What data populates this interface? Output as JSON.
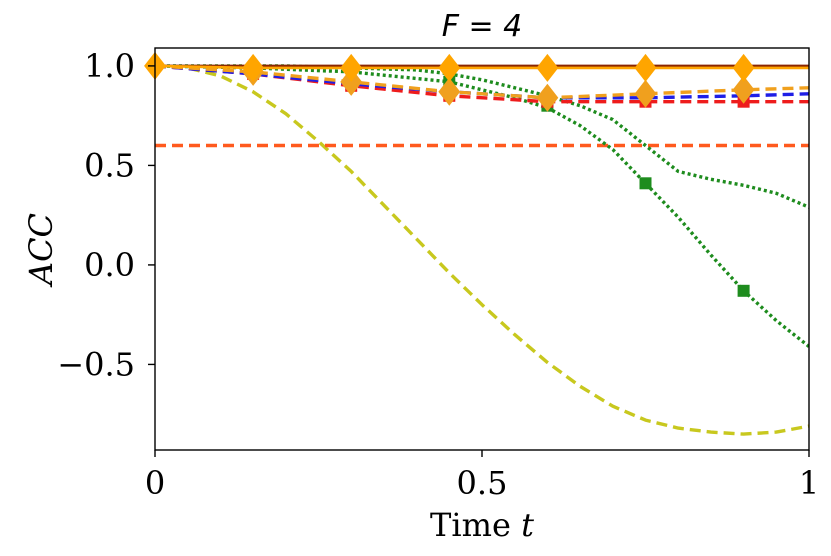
{
  "chart_data": {
    "type": "line",
    "title": "F = 4",
    "xlabel": "Time",
    "xlabel_var": "t",
    "ylabel": "ACC",
    "xlim": [
      0,
      1
    ],
    "ylim": [
      -0.93,
      1.09
    ],
    "xticks": [
      0,
      0.5,
      1
    ],
    "xtick_labels": [
      "0",
      "0.5",
      "1"
    ],
    "yticks": [
      -0.5,
      0.0,
      0.5,
      1.0
    ],
    "ytick_labels": [
      "−0.5",
      "0.0",
      "0.5",
      "1.0"
    ],
    "grid": false,
    "series": [
      {
        "name": "yellow-dashed",
        "color": "#c8c81e",
        "style": "dashed",
        "x": [
          0,
          0.05,
          0.1,
          0.15,
          0.2,
          0.25,
          0.3,
          0.35,
          0.4,
          0.45,
          0.5,
          0.55,
          0.6,
          0.65,
          0.7,
          0.75,
          0.8,
          0.85,
          0.9,
          0.95,
          1.0
        ],
        "y": [
          1.0,
          0.99,
          0.95,
          0.87,
          0.76,
          0.62,
          0.47,
          0.3,
          0.13,
          -0.04,
          -0.2,
          -0.35,
          -0.49,
          -0.61,
          -0.71,
          -0.78,
          -0.82,
          -0.84,
          -0.85,
          -0.84,
          -0.81
        ],
        "marker": "none"
      },
      {
        "name": "orange-red-dashed-constant",
        "color": "#ff5a1e",
        "style": "dashed",
        "x": [
          0,
          1.0
        ],
        "y": [
          0.6,
          0.6
        ],
        "marker": "none"
      },
      {
        "name": "green-dotted-1",
        "color": "#1e8c1e",
        "style": "dotted",
        "x": [
          0,
          0.1,
          0.2,
          0.3,
          0.4,
          0.45,
          0.5,
          0.55,
          0.6,
          0.65,
          0.7,
          0.75,
          0.8,
          0.85,
          0.9,
          0.95,
          1.0
        ],
        "y": [
          1.0,
          1.0,
          1.0,
          0.99,
          0.98,
          0.96,
          0.93,
          0.89,
          0.85,
          0.8,
          0.73,
          0.6,
          0.47,
          0.43,
          0.4,
          0.36,
          0.29
        ],
        "marker": "none"
      },
      {
        "name": "green-dotted-2",
        "color": "#1e8c1e",
        "style": "dotted",
        "x": [
          0,
          0.15,
          0.3,
          0.45,
          0.5,
          0.55,
          0.6,
          0.65,
          0.7,
          0.75,
          0.8,
          0.85,
          0.9,
          0.95,
          1.0
        ],
        "y": [
          1.0,
          0.99,
          0.97,
          0.92,
          0.88,
          0.84,
          0.79,
          0.7,
          0.58,
          0.41,
          0.24,
          0.05,
          -0.13,
          -0.28,
          -0.41
        ],
        "marker": "square",
        "marker_x": [
          0.45,
          0.6,
          0.75,
          0.9
        ],
        "marker_y": [
          0.92,
          0.8,
          0.41,
          -0.13
        ]
      },
      {
        "name": "red-dashed",
        "color": "#ee1c1c",
        "style": "dashed",
        "x": [
          0,
          0.15,
          0.3,
          0.45,
          0.6,
          0.75,
          0.9,
          1.0
        ],
        "y": [
          1.0,
          0.96,
          0.9,
          0.85,
          0.82,
          0.82,
          0.82,
          0.82
        ],
        "marker": "square",
        "marker_x": [
          0.15,
          0.3,
          0.45,
          0.6,
          0.75,
          0.9
        ],
        "marker_y": [
          0.96,
          0.9,
          0.85,
          0.82,
          0.82,
          0.82
        ]
      },
      {
        "name": "blue-dashed",
        "color": "#1e1ee6",
        "style": "dashed",
        "x": [
          0,
          0.15,
          0.3,
          0.45,
          0.6,
          0.75,
          0.9,
          1.0
        ],
        "y": [
          1.0,
          0.96,
          0.91,
          0.87,
          0.84,
          0.84,
          0.85,
          0.86
        ],
        "marker": "none"
      },
      {
        "name": "orange-dashed",
        "color": "#f0a01e",
        "style": "dashed",
        "x": [
          0,
          0.15,
          0.3,
          0.45,
          0.6,
          0.75,
          0.9,
          1.0
        ],
        "y": [
          1.0,
          0.97,
          0.92,
          0.87,
          0.84,
          0.86,
          0.88,
          0.89
        ],
        "marker": "diamond",
        "marker_x": [
          0.15,
          0.3,
          0.45,
          0.6,
          0.75,
          0.9
        ],
        "marker_y": [
          0.97,
          0.92,
          0.87,
          0.84,
          0.86,
          0.88
        ]
      },
      {
        "name": "dark-solid",
        "color": "#8b2500",
        "style": "solid",
        "x": [
          0,
          1.0
        ],
        "y": [
          1.0,
          1.0
        ],
        "marker": "none"
      },
      {
        "name": "orange-solid",
        "color": "#ffa500",
        "style": "solid",
        "x": [
          0,
          0.15,
          0.3,
          0.45,
          0.6,
          0.75,
          0.9,
          1.0
        ],
        "y": [
          1.0,
          0.99,
          0.99,
          0.99,
          0.99,
          0.99,
          0.99,
          0.99
        ],
        "marker": "diamond",
        "marker_x": [
          0,
          0.15,
          0.3,
          0.45,
          0.6,
          0.75,
          0.9
        ],
        "marker_y": [
          1.0,
          0.99,
          0.99,
          0.99,
          0.99,
          0.99,
          0.99
        ]
      }
    ]
  }
}
